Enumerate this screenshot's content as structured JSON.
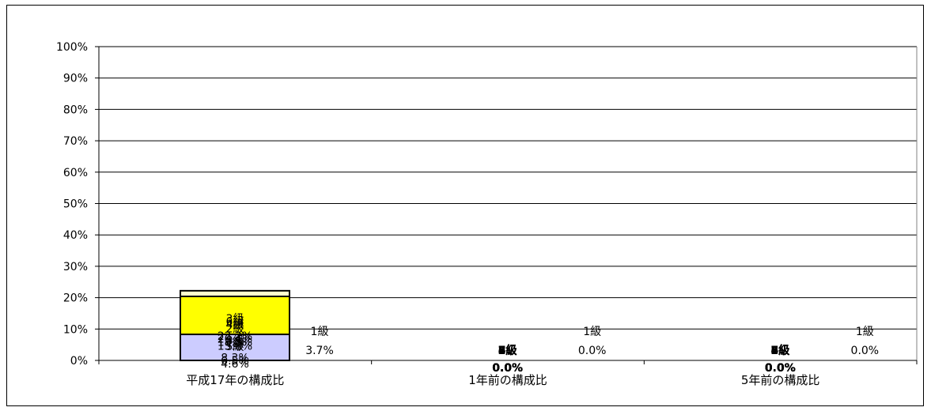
{
  "chart_data": {
    "type": "bar",
    "stacked": true,
    "percent": true,
    "categories": [
      "平成17年の構成比",
      "1年前の構成比",
      "5年前の構成比"
    ],
    "y_ticks": [
      "0%",
      "10%",
      "20%",
      "30%",
      "40%",
      "50%",
      "60%",
      "70%",
      "80%",
      "90%",
      "100%"
    ],
    "ylim": [
      0,
      100
    ],
    "grid": true,
    "series": [
      {
        "name": "1級",
        "values": [
          3.7,
          0.0,
          0.0
        ],
        "labels": [
          "3.7%",
          "0.0%",
          "0.0%"
        ],
        "color": "#9999ff"
      },
      {
        "name": "2級",
        "values": [
          15.8,
          0.0,
          0.0
        ],
        "labels": [
          "15.8%",
          "0.0%",
          "0.0%"
        ],
        "color": "#ff00ff"
      },
      {
        "name": "3級",
        "values": [
          22.2,
          0.0,
          0.0
        ],
        "labels": [
          "22.2%",
          "0.0%",
          "0.0%"
        ],
        "color": "#ffffcc"
      },
      {
        "name": "4級",
        "values": [
          18.5,
          0.0,
          0.0
        ],
        "labels": [
          "18.5%",
          "0.0%",
          "0.0%"
        ],
        "color": "#ccffff"
      },
      {
        "name": "5級",
        "values": [
          4.6,
          0.0,
          0.0
        ],
        "labels": [
          "4.6%",
          "0.0%",
          "0.0%"
        ],
        "color": "#ff8080"
      },
      {
        "name": "6級",
        "values": [
          20.4,
          0.0,
          0.0
        ],
        "labels": [
          "20.4%",
          "0.0%",
          "0.0%"
        ],
        "color": "#ffff00"
      },
      {
        "name": "7級",
        "values": [
          6.5,
          0.0,
          0.0
        ],
        "labels": [
          "6.5%",
          "0.0%",
          "0.0%"
        ],
        "color": "#00ff00"
      },
      {
        "name": "8級",
        "values": [
          8.3,
          0.0,
          0.0
        ],
        "labels": [
          "8.3%",
          "0.0%",
          "0.0%"
        ],
        "color": "#ccccff"
      }
    ]
  }
}
